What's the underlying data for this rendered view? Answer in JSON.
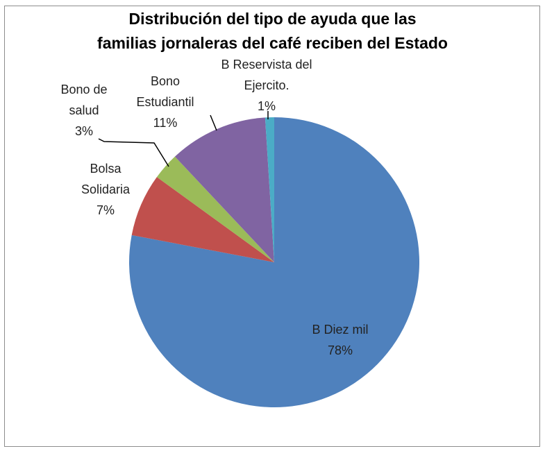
{
  "chart_data": {
    "type": "pie",
    "title": "Distribución del tipo de ayuda que las\nfamilias jornaleras del café reciben del Estado",
    "categories": [
      "B Diez mil",
      "Bolsa Solidaria",
      "Bono de salud",
      "Bono Estudiantil",
      "B Reservista del Ejercito."
    ],
    "values": [
      78,
      7,
      3,
      11,
      1
    ],
    "value_labels": [
      "78%",
      "7%",
      "3%",
      "11%",
      "1%"
    ],
    "colors": [
      "#4f81bd",
      "#c0504d",
      "#9bbb59",
      "#8064a2",
      "#4bacc6"
    ]
  }
}
